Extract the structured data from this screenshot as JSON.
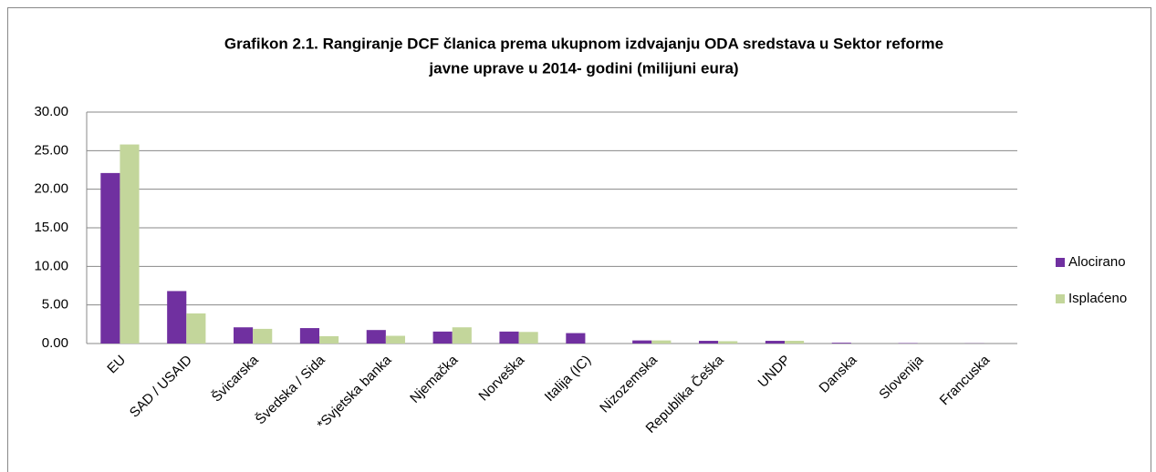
{
  "chart_data": {
    "type": "bar",
    "title": [
      "Grafikon 2.1. Rangiranje DCF članica prema ukupnom izdvajanju ODA sredstava u Sektor reforme",
      "javne uprave  u 2014- godini  (milijuni eura)"
    ],
    "categories": [
      "EU",
      "SAD / USAID",
      "Švicarska",
      "Švedska / Sida",
      "*Svjetska banka",
      "Njemačka",
      "Norveška",
      "Italija (IC)",
      "Nizozemska",
      "Republika Češka",
      "UNDP",
      "Danska",
      "Slovenija",
      "Francuska"
    ],
    "series": [
      {
        "name": "Alocirano",
        "color": "#7030a0",
        "values": [
          22.1,
          6.8,
          2.1,
          2.0,
          1.75,
          1.55,
          1.55,
          1.35,
          0.4,
          0.35,
          0.35,
          0.1,
          0.05,
          0.02
        ]
      },
      {
        "name": "Isplaćeno",
        "color": "#c3d69b",
        "values": [
          25.8,
          3.9,
          1.9,
          0.95,
          1.0,
          2.1,
          1.5,
          0,
          0.4,
          0.3,
          0.35,
          0,
          0,
          0
        ]
      }
    ],
    "ylim": [
      0,
      30
    ],
    "yticks": [
      {
        "value": 0,
        "label": "0.00"
      },
      {
        "value": 5,
        "label": "5.00"
      },
      {
        "value": 10,
        "label": "10.00"
      },
      {
        "value": 15,
        "label": "15.00"
      },
      {
        "value": 20,
        "label": "20.00"
      },
      {
        "value": 25,
        "label": "25.00"
      },
      {
        "value": 30,
        "label": "30.00"
      }
    ],
    "grid": true,
    "legend": "right"
  }
}
